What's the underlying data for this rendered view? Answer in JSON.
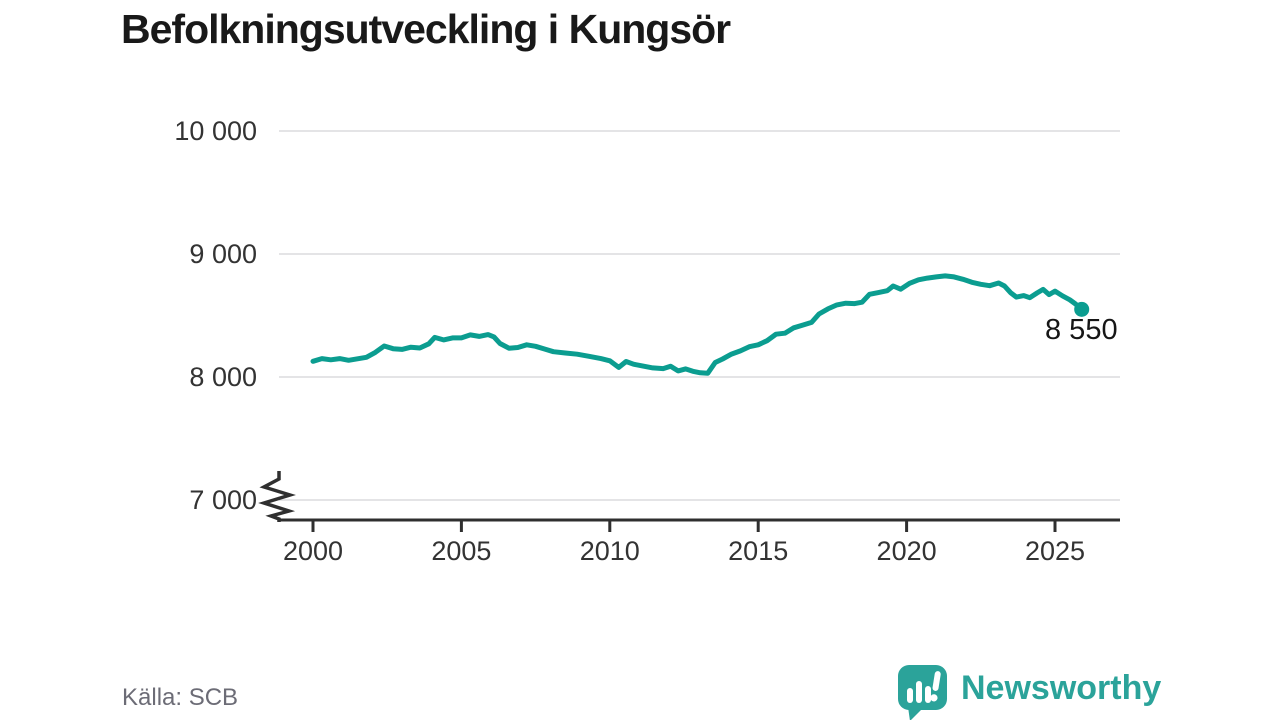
{
  "title": "Befolkningsutveckling i Kungsör",
  "source": "Källa: SCB",
  "annotation": {
    "end_label": "8 550"
  },
  "logo": {
    "text": "Newsworthy",
    "icon": "speech-bubble-bar-chart-icon"
  },
  "colors": {
    "line": "#0b9d90",
    "grid": "#e4e4e6",
    "axis": "#2f2f2f",
    "tick_text": "#333333",
    "title_text": "#191919",
    "source_text": "#6c6c76",
    "logo_teal": "#2ba39a",
    "background": "#ffffff"
  },
  "chart_data": {
    "type": "line",
    "title": "Befolkningsutveckling i Kungsör",
    "xlabel": "",
    "ylabel": "",
    "source": "Källa: SCB",
    "grid": "horizontal-only",
    "axis_break_at_bottom": true,
    "xlim": [
      1998.8,
      2027.2
    ],
    "ylim": [
      7000,
      10000
    ],
    "y_ticks": [
      {
        "value": 10000,
        "label": "10 000"
      },
      {
        "value": 9000,
        "label": "9 000"
      },
      {
        "value": 8000,
        "label": "8 000"
      },
      {
        "value": 7000,
        "label": "7 000"
      }
    ],
    "x_ticks": [
      {
        "value": 2000,
        "label": "2000"
      },
      {
        "value": 2005,
        "label": "2005"
      },
      {
        "value": 2010,
        "label": "2010"
      },
      {
        "value": 2015,
        "label": "2015"
      },
      {
        "value": 2020,
        "label": "2020"
      },
      {
        "value": 2025,
        "label": "2025"
      }
    ],
    "end_point": {
      "x": 2025.9,
      "y": 8550,
      "label": "8 550"
    },
    "series": [
      {
        "name": "Befolkning Kungsör",
        "color": "#0b9d90",
        "points": [
          [
            2000.0,
            8128
          ],
          [
            2000.3,
            8150
          ],
          [
            2000.6,
            8140
          ],
          [
            2000.9,
            8150
          ],
          [
            2001.2,
            8136
          ],
          [
            2001.5,
            8148
          ],
          [
            2001.8,
            8160
          ],
          [
            2002.1,
            8200
          ],
          [
            2002.4,
            8252
          ],
          [
            2002.7,
            8230
          ],
          [
            2003.0,
            8224
          ],
          [
            2003.3,
            8242
          ],
          [
            2003.6,
            8236
          ],
          [
            2003.9,
            8270
          ],
          [
            2004.1,
            8322
          ],
          [
            2004.4,
            8302
          ],
          [
            2004.7,
            8318
          ],
          [
            2005.0,
            8318
          ],
          [
            2005.3,
            8342
          ],
          [
            2005.6,
            8330
          ],
          [
            2005.9,
            8345
          ],
          [
            2006.1,
            8326
          ],
          [
            2006.3,
            8272
          ],
          [
            2006.6,
            8234
          ],
          [
            2006.9,
            8240
          ],
          [
            2007.2,
            8262
          ],
          [
            2007.5,
            8250
          ],
          [
            2007.8,
            8228
          ],
          [
            2008.1,
            8206
          ],
          [
            2008.5,
            8195
          ],
          [
            2008.9,
            8185
          ],
          [
            2009.3,
            8168
          ],
          [
            2009.7,
            8150
          ],
          [
            2010.0,
            8132
          ],
          [
            2010.3,
            8078
          ],
          [
            2010.55,
            8126
          ],
          [
            2010.8,
            8104
          ],
          [
            2011.1,
            8090
          ],
          [
            2011.45,
            8074
          ],
          [
            2011.8,
            8068
          ],
          [
            2012.05,
            8088
          ],
          [
            2012.3,
            8050
          ],
          [
            2012.55,
            8066
          ],
          [
            2012.8,
            8046
          ],
          [
            2013.05,
            8034
          ],
          [
            2013.3,
            8030
          ],
          [
            2013.55,
            8118
          ],
          [
            2013.8,
            8146
          ],
          [
            2014.1,
            8186
          ],
          [
            2014.4,
            8212
          ],
          [
            2014.7,
            8246
          ],
          [
            2015.0,
            8262
          ],
          [
            2015.3,
            8295
          ],
          [
            2015.6,
            8348
          ],
          [
            2015.9,
            8356
          ],
          [
            2016.2,
            8400
          ],
          [
            2016.5,
            8422
          ],
          [
            2016.8,
            8444
          ],
          [
            2017.05,
            8512
          ],
          [
            2017.35,
            8554
          ],
          [
            2017.65,
            8586
          ],
          [
            2017.95,
            8600
          ],
          [
            2018.25,
            8597
          ],
          [
            2018.5,
            8608
          ],
          [
            2018.75,
            8672
          ],
          [
            2019.05,
            8686
          ],
          [
            2019.35,
            8702
          ],
          [
            2019.55,
            8740
          ],
          [
            2019.8,
            8714
          ],
          [
            2020.1,
            8762
          ],
          [
            2020.4,
            8790
          ],
          [
            2020.7,
            8804
          ],
          [
            2021.0,
            8814
          ],
          [
            2021.3,
            8822
          ],
          [
            2021.6,
            8814
          ],
          [
            2021.9,
            8794
          ],
          [
            2022.2,
            8770
          ],
          [
            2022.5,
            8754
          ],
          [
            2022.8,
            8742
          ],
          [
            2023.1,
            8764
          ],
          [
            2023.3,
            8740
          ],
          [
            2023.5,
            8686
          ],
          [
            2023.7,
            8650
          ],
          [
            2023.95,
            8662
          ],
          [
            2024.15,
            8645
          ],
          [
            2024.4,
            8684
          ],
          [
            2024.6,
            8712
          ],
          [
            2024.8,
            8670
          ],
          [
            2025.0,
            8698
          ],
          [
            2025.25,
            8660
          ],
          [
            2025.5,
            8628
          ],
          [
            2025.7,
            8592
          ],
          [
            2025.9,
            8550
          ]
        ]
      }
    ]
  }
}
